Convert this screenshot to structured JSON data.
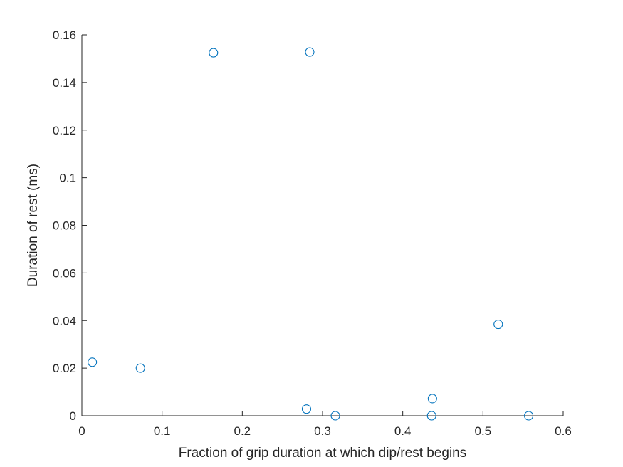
{
  "chart_data": {
    "type": "scatter",
    "title": "",
    "xlabel": "Fraction of grip duration at which dip/rest begins",
    "ylabel": "Duration of rest (ms)",
    "xlim": [
      0,
      0.6
    ],
    "ylim": [
      0,
      0.16
    ],
    "xticks": [
      0,
      0.1,
      0.2,
      0.3,
      0.4,
      0.5,
      0.6
    ],
    "xtick_labels": [
      "0",
      "0.1",
      "0.2",
      "0.3",
      "0.4",
      "0.5",
      "0.6"
    ],
    "yticks": [
      0,
      0.02,
      0.04,
      0.06,
      0.08,
      0.1,
      0.12,
      0.14,
      0.16
    ],
    "ytick_labels": [
      "0",
      "0.02",
      "0.04",
      "0.06",
      "0.08",
      "0.1",
      "0.12",
      "0.14",
      "0.16"
    ],
    "grid": false,
    "marker": "open-circle",
    "marker_color": "#0072BD",
    "axis_color": "#262626",
    "points": [
      {
        "x": 0.013,
        "y": 0.0225
      },
      {
        "x": 0.073,
        "y": 0.02
      },
      {
        "x": 0.164,
        "y": 0.1525
      },
      {
        "x": 0.284,
        "y": 0.1528
      },
      {
        "x": 0.28,
        "y": 0.0028
      },
      {
        "x": 0.316,
        "y": 0.0
      },
      {
        "x": 0.437,
        "y": 0.0072
      },
      {
        "x": 0.436,
        "y": 0.0
      },
      {
        "x": 0.519,
        "y": 0.0384
      },
      {
        "x": 0.557,
        "y": 0.0
      }
    ]
  }
}
